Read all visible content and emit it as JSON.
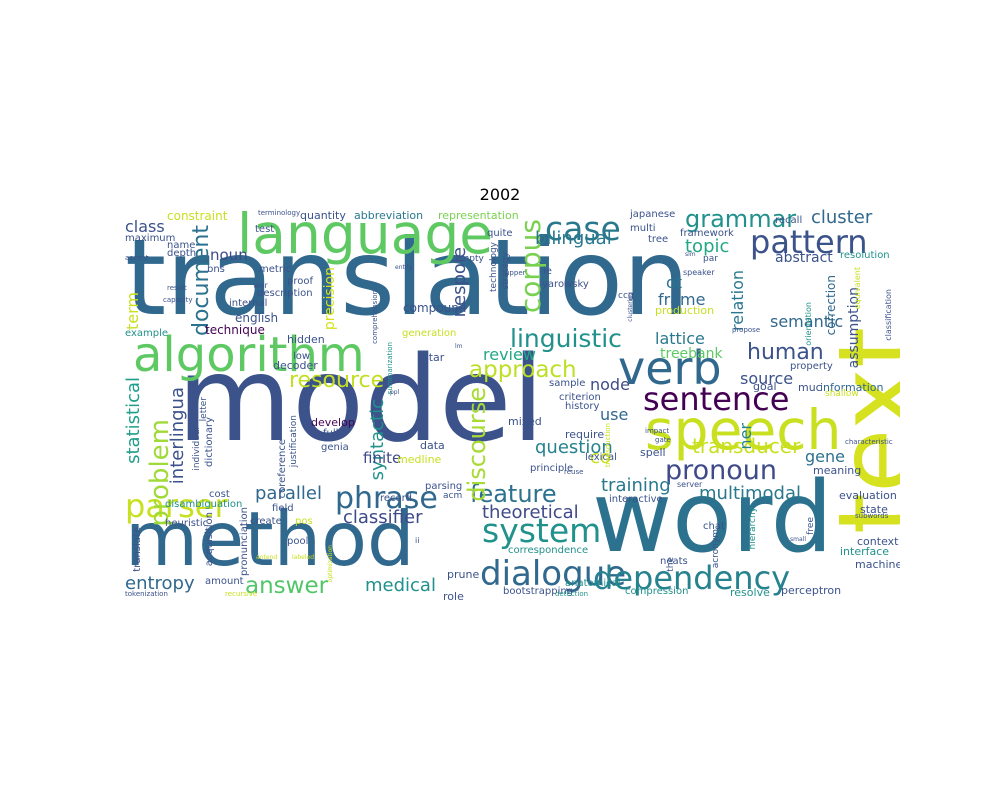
{
  "title": "2002",
  "palette": {
    "dark_purple": "#440154",
    "indigo": "#3b528b",
    "teal": "#21918c",
    "slate": "#31688e",
    "green": "#5ec962",
    "light_green": "#7ad151",
    "yellow": "#d6e21f"
  },
  "words": [
    {
      "text": "translation",
      "c": "#31688e"
    },
    {
      "text": "model",
      "c": "#3b528b"
    },
    {
      "text": "method",
      "c": "#31688e"
    },
    {
      "text": "word",
      "c": "#2c728e"
    },
    {
      "text": "text",
      "c": "#d6e21f"
    },
    {
      "text": "language",
      "c": "#5ec962"
    },
    {
      "text": "algorithm",
      "c": "#5ec962"
    },
    {
      "text": "speech",
      "c": "#c8e020"
    },
    {
      "text": "verb",
      "c": "#31688e"
    },
    {
      "text": "dialogue",
      "c": "#31688e"
    },
    {
      "text": "dependency",
      "c": "#26828e"
    },
    {
      "text": "pattern",
      "c": "#3b528b"
    },
    {
      "text": "case",
      "c": "#2a788e"
    },
    {
      "text": "sentence",
      "c": "#440154"
    },
    {
      "text": "pronoun",
      "c": "#3e4a89"
    },
    {
      "text": "phrase",
      "c": "#31688e"
    },
    {
      "text": "system",
      "c": "#21918c"
    },
    {
      "text": "parser",
      "c": "#c8e020"
    },
    {
      "text": "grammar",
      "c": "#21918c"
    },
    {
      "text": "corpus",
      "c": "#7ad151"
    },
    {
      "text": "linguistic",
      "c": "#21918c"
    },
    {
      "text": "approach",
      "c": "#bddf26"
    },
    {
      "text": "feature",
      "c": "#2c728e"
    },
    {
      "text": "human",
      "c": "#3b528b"
    },
    {
      "text": "answer",
      "c": "#52c569"
    },
    {
      "text": "problem",
      "c": "#a0da39"
    },
    {
      "text": "resource",
      "c": "#c2df23"
    },
    {
      "text": "discourse",
      "c": "#a8db34"
    },
    {
      "text": "document",
      "c": "#2c728e"
    },
    {
      "text": "bilingual",
      "c": "#2a788e"
    },
    {
      "text": "cluster",
      "c": "#31688e"
    },
    {
      "text": "topic",
      "c": "#22a884"
    },
    {
      "text": "transducer",
      "c": "#c8e020"
    },
    {
      "text": "syntactic",
      "c": "#21918c"
    },
    {
      "text": "statistical",
      "c": "#1f9e89"
    },
    {
      "text": "interlingua",
      "c": "#3b528b"
    },
    {
      "text": "question",
      "c": "#26828e"
    },
    {
      "text": "theoretical",
      "c": "#3e4a89"
    },
    {
      "text": "training",
      "c": "#2a788e"
    },
    {
      "text": "classifier",
      "c": "#3e4a89"
    },
    {
      "text": "parallel",
      "c": "#31688e"
    },
    {
      "text": "multimodal",
      "c": "#2a788e"
    },
    {
      "text": "medical",
      "c": "#21918c"
    },
    {
      "text": "entropy",
      "c": "#31688e"
    },
    {
      "text": "nespole",
      "c": "#3b528b"
    },
    {
      "text": "review",
      "c": "#22a884"
    },
    {
      "text": "node",
      "c": "#3e4a89"
    },
    {
      "text": "use",
      "c": "#31688e"
    },
    {
      "text": "co",
      "c": "#c8e020"
    },
    {
      "text": "source",
      "c": "#3b528b"
    },
    {
      "text": "gene",
      "c": "#2c728e"
    },
    {
      "text": "semantic",
      "c": "#31688e"
    },
    {
      "text": "lattice",
      "c": "#2a788e"
    },
    {
      "text": "treebank",
      "c": "#5ec962"
    },
    {
      "text": "frame",
      "c": "#31688e"
    },
    {
      "text": "ot",
      "c": "#2c728e"
    },
    {
      "text": "relation",
      "c": "#2a788e"
    },
    {
      "text": "ner",
      "c": "#26828e"
    },
    {
      "text": "class",
      "c": "#3b528b"
    },
    {
      "text": "term",
      "c": "#c8e020"
    },
    {
      "text": "noun",
      "c": "#3e4a89"
    },
    {
      "text": "finite",
      "c": "#3e4a89"
    },
    {
      "text": "precision",
      "c": "#d6e21f"
    },
    {
      "text": "abstract",
      "c": "#3b528b"
    },
    {
      "text": "assumption",
      "c": "#3b528b"
    },
    {
      "text": "correction",
      "c": "#31688e"
    },
    {
      "text": "constraint",
      "c": "#c8e020"
    },
    {
      "text": "quantity",
      "c": "#3b528b"
    },
    {
      "text": "abbreviation",
      "c": "#2a788e"
    },
    {
      "text": "representation",
      "c": "#7ad151"
    },
    {
      "text": "japanese",
      "c": "#3b528b"
    },
    {
      "text": "multi",
      "c": "#3b528b"
    },
    {
      "text": "framework",
      "c": "#3b528b"
    },
    {
      "text": "recall",
      "c": "#3b528b"
    },
    {
      "text": "resolution",
      "c": "#21918c"
    },
    {
      "text": "technique",
      "c": "#440154"
    },
    {
      "text": "english",
      "c": "#3b528b"
    },
    {
      "text": "compound",
      "c": "#3b528b"
    },
    {
      "text": "production",
      "c": "#c8e020"
    },
    {
      "text": "hidden",
      "c": "#3b528b"
    },
    {
      "text": "generation",
      "c": "#c8e020"
    },
    {
      "text": "decoder",
      "c": "#3b528b"
    },
    {
      "text": "star",
      "c": "#3b528b"
    },
    {
      "text": "sample",
      "c": "#3b528b"
    },
    {
      "text": "property",
      "c": "#3b528b"
    },
    {
      "text": "information",
      "c": "#31688e"
    },
    {
      "text": "goal",
      "c": "#3b528b"
    },
    {
      "text": "muc",
      "c": "#3b528b"
    },
    {
      "text": "develop",
      "c": "#440154"
    },
    {
      "text": "full",
      "c": "#3b528b"
    },
    {
      "text": "genia",
      "c": "#3b528b"
    },
    {
      "text": "mixed",
      "c": "#3b528b"
    },
    {
      "text": "medline",
      "c": "#c8e020"
    },
    {
      "text": "data",
      "c": "#3b528b"
    },
    {
      "text": "require",
      "c": "#3b528b"
    },
    {
      "text": "history",
      "c": "#3b528b"
    },
    {
      "text": "criterion",
      "c": "#3b528b"
    },
    {
      "text": "spell",
      "c": "#3b528b"
    },
    {
      "text": "meaning",
      "c": "#3b528b"
    },
    {
      "text": "evaluation",
      "c": "#3b528b"
    },
    {
      "text": "state",
      "c": "#3b528b"
    },
    {
      "text": "context",
      "c": "#3b528b"
    },
    {
      "text": "interface",
      "c": "#21918c"
    },
    {
      "text": "machine",
      "c": "#3b528b"
    },
    {
      "text": "perceptron",
      "c": "#3b528b"
    },
    {
      "text": "resolve",
      "c": "#21918c"
    },
    {
      "text": "compression",
      "c": "#21918c"
    },
    {
      "text": "bootstrapping",
      "c": "#3b528b"
    },
    {
      "text": "role",
      "c": "#3b528b"
    },
    {
      "text": "prune",
      "c": "#3b528b"
    },
    {
      "text": "neats",
      "c": "#3b528b"
    },
    {
      "text": "lexical",
      "c": "#3b528b"
    },
    {
      "text": "principle",
      "c": "#3b528b"
    },
    {
      "text": "interactive",
      "c": "#3b528b"
    },
    {
      "text": "correspondence",
      "c": "#21918c"
    },
    {
      "text": "chat",
      "c": "#3b528b"
    },
    {
      "text": "parsing",
      "c": "#3b528b"
    },
    {
      "text": "record",
      "c": "#3b528b"
    },
    {
      "text": "field",
      "c": "#3b528b"
    },
    {
      "text": "create",
      "c": "#3b528b"
    },
    {
      "text": "pool",
      "c": "#3b528b"
    },
    {
      "text": "pos",
      "c": "#c8e020"
    },
    {
      "text": "heuristic",
      "c": "#3b528b"
    },
    {
      "text": "cost",
      "c": "#3b528b"
    },
    {
      "text": "amount",
      "c": "#3b528b"
    },
    {
      "text": "disambiguation",
      "c": "#21918c"
    },
    {
      "text": "translate",
      "c": "#3b528b"
    },
    {
      "text": "maximum",
      "c": "#3b528b"
    },
    {
      "text": "name",
      "c": "#3b528b"
    },
    {
      "text": "depth",
      "c": "#3b528b"
    },
    {
      "text": "bns",
      "c": "#3b528b"
    },
    {
      "text": "test",
      "c": "#3b528b"
    },
    {
      "text": "metric",
      "c": "#3b528b"
    },
    {
      "text": "proof",
      "c": "#3b528b"
    },
    {
      "text": "description",
      "c": "#3b528b"
    },
    {
      "text": "internal",
      "c": "#3b528b"
    },
    {
      "text": "example",
      "c": "#21918c"
    },
    {
      "text": "low",
      "c": "#3b528b"
    },
    {
      "text": "acquisition",
      "c": "#3b528b"
    },
    {
      "text": "pronunciation",
      "c": "#3b528b"
    },
    {
      "text": "coreference",
      "c": "#3b528b"
    },
    {
      "text": "dictionary",
      "c": "#3b528b"
    },
    {
      "text": "justification",
      "c": "#3b528b"
    },
    {
      "text": "individual",
      "c": "#3b528b"
    },
    {
      "text": "letter",
      "c": "#3b528b"
    },
    {
      "text": "quite",
      "c": "#3b528b"
    },
    {
      "text": "technology",
      "c": "#3b528b"
    },
    {
      "text": "strategy",
      "c": "#3b528b"
    },
    {
      "text": "ie",
      "c": "#3b528b"
    },
    {
      "text": "yarowsky",
      "c": "#3b528b"
    },
    {
      "text": "anatomical",
      "c": "#21918c"
    },
    {
      "text": "tree",
      "c": "#3b528b"
    },
    {
      "text": "par",
      "c": "#3b528b"
    },
    {
      "text": "empty",
      "c": "#3b528b"
    },
    {
      "text": "ccg",
      "c": "#3b528b"
    },
    {
      "text": "speaker",
      "c": "#3b528b"
    },
    {
      "text": "terminology",
      "c": "#3b528b"
    },
    {
      "text": "wer",
      "c": "#3b528b"
    },
    {
      "text": "result",
      "c": "#3b528b"
    },
    {
      "text": "capacity",
      "c": "#3b528b"
    },
    {
      "text": "accent",
      "c": "#3b528b"
    },
    {
      "text": "hierarchy",
      "c": "#21918c"
    },
    {
      "text": "acronym",
      "c": "#3b528b"
    },
    {
      "text": "free",
      "c": "#3b528b"
    },
    {
      "text": "equivalent",
      "c": "#c8e020"
    },
    {
      "text": "classification",
      "c": "#3b528b"
    },
    {
      "text": "orientation",
      "c": "#21918c"
    },
    {
      "text": "characteristic",
      "c": "#3b528b"
    },
    {
      "text": "shallow",
      "c": "#c8e020"
    },
    {
      "text": "subwords",
      "c": "#3b528b"
    },
    {
      "text": "tokenization",
      "c": "#3b528b"
    },
    {
      "text": "recursive",
      "c": "#c8e020"
    },
    {
      "text": "detection",
      "c": "#21918c"
    },
    {
      "text": "impact",
      "c": "#3b528b"
    },
    {
      "text": "gate",
      "c": "#3b528b"
    },
    {
      "text": "transduction",
      "c": "#c8e020"
    },
    {
      "text": "summarization",
      "c": "#21918c"
    },
    {
      "text": "comprehension",
      "c": "#3b528b"
    },
    {
      "text": "clustering",
      "c": "#3b528b"
    },
    {
      "text": "upper",
      "c": "#3b528b"
    },
    {
      "text": "reuse",
      "c": "#3b528b"
    },
    {
      "text": "server",
      "c": "#3b528b"
    },
    {
      "text": "propose",
      "c": "#3b528b"
    },
    {
      "text": "slm",
      "c": "#3b528b"
    },
    {
      "text": "entity",
      "c": "#3b528b"
    },
    {
      "text": "optimization",
      "c": "#c8e020"
    },
    {
      "text": "ppl",
      "c": "#3b528b"
    },
    {
      "text": "labeled",
      "c": "#c8e020"
    },
    {
      "text": "antend",
      "c": "#c8e020"
    },
    {
      "text": "ii",
      "c": "#3b528b"
    },
    {
      "text": "lm",
      "c": "#3b528b"
    },
    {
      "text": "the",
      "c": "#3b528b"
    },
    {
      "text": "small",
      "c": "#3b528b"
    },
    {
      "text": "acm",
      "c": "#3b528b"
    }
  ]
}
